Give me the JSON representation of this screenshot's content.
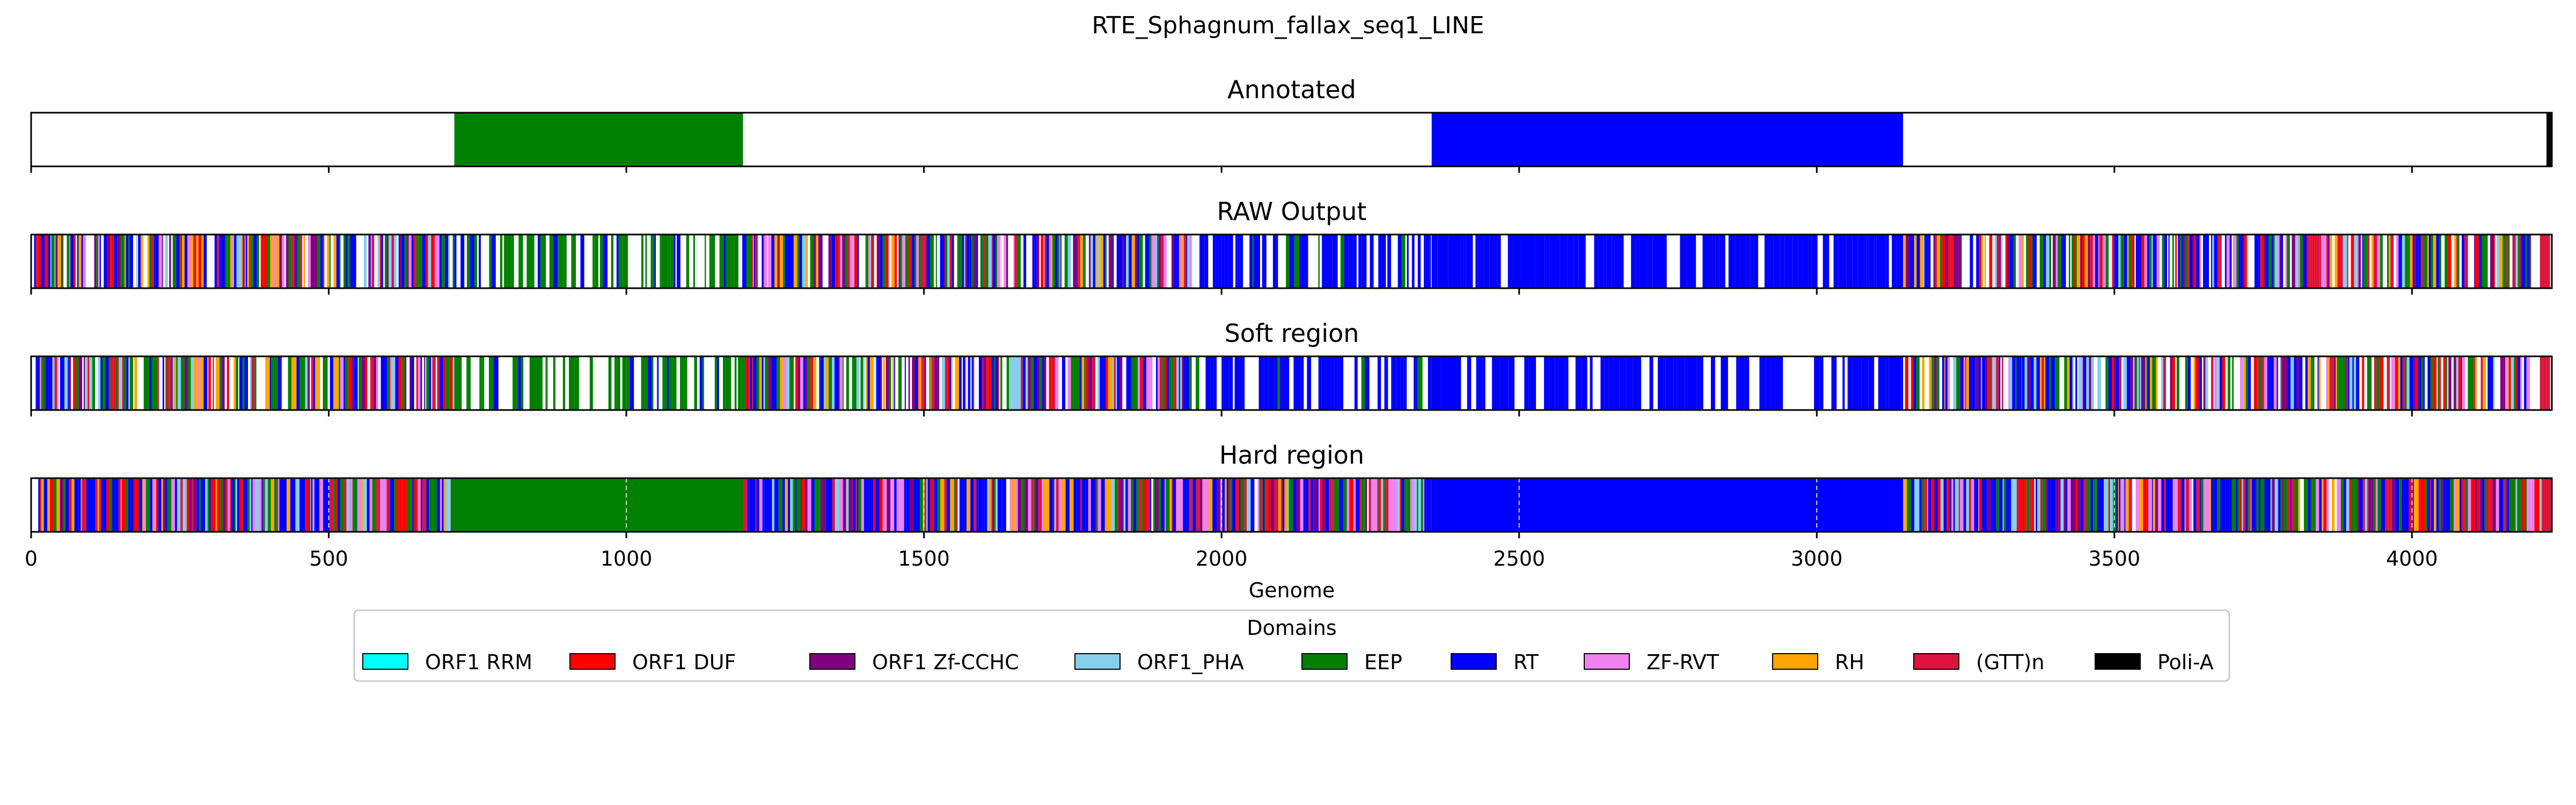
{
  "chart_data": {
    "type": "genome-track",
    "title": "RTE_Sphagnum_fallax_seq1_LINE",
    "xlabel": "Genome",
    "xlim": [
      0,
      4235
    ],
    "xticks": [
      0,
      500,
      1000,
      1500,
      2000,
      2500,
      3000,
      3500,
      4000
    ],
    "tracks": [
      {
        "name": "Annotated",
        "segments": [
          {
            "start": 711,
            "end": 1196,
            "domain": "EEP"
          },
          {
            "start": 2353,
            "end": 3145,
            "domain": "RT"
          },
          {
            "start": 4226,
            "end": 4235,
            "domain": "Poli-A"
          }
        ]
      },
      {
        "name": "RAW Output",
        "pattern": "raw",
        "segments": []
      },
      {
        "name": "Soft region",
        "pattern": "raw",
        "segments": []
      },
      {
        "name": "Hard region",
        "pattern": "hard",
        "segments": [
          {
            "start": 711,
            "end": 1196,
            "domain": "EEP"
          },
          {
            "start": 2353,
            "end": 3145,
            "domain": "RT"
          },
          {
            "start": 4218,
            "end": 4235,
            "domain": "(GTT)n"
          }
        ]
      }
    ],
    "legend": {
      "title": "Domains",
      "placement": "bottom-center",
      "items": [
        {
          "label": "ORF1 RRM",
          "color": "#00ffff"
        },
        {
          "label": "ORF1 DUF",
          "color": "#ff0000"
        },
        {
          "label": "ORF1 Zf-CCHC",
          "color": "#800080"
        },
        {
          "label": "ORF1_PHA",
          "color": "#87ceeb"
        },
        {
          "label": "EEP",
          "color": "#008000"
        },
        {
          "label": "RT",
          "color": "#0000ff"
        },
        {
          "label": "ZF-RVT",
          "color": "#ee82ee"
        },
        {
          "label": "RH",
          "color": "#ffa500"
        },
        {
          "label": "(GTT)n",
          "color": "#dc143c"
        },
        {
          "label": "Poli-A",
          "color": "#000000"
        }
      ]
    }
  }
}
